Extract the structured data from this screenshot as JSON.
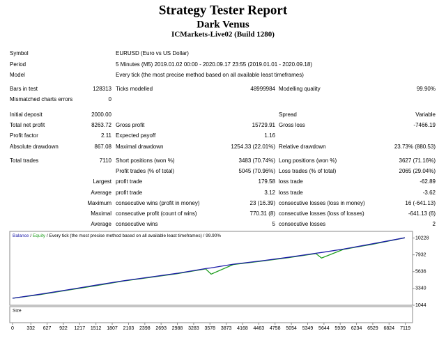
{
  "header": {
    "title": "Strategy Tester Report",
    "subtitle": "Dark Venus",
    "server": "ICMarkets-Live02 (Build 1280)"
  },
  "info": [
    {
      "label": "Symbol",
      "value": "EURUSD (Euro vs US Dollar)"
    },
    {
      "label": "Period",
      "value": "5 Minutes (M5) 2019.01.02 00:00 - 2020.09.17 23:55 (2019.01.01 - 2020.09.18)"
    },
    {
      "label": "Model",
      "value": "Every tick (the most precise method based on all available least timeframes)"
    }
  ],
  "stats": [
    {
      "left": {
        "label": "Bars in test",
        "value": "128313"
      },
      "middle": {
        "label": "Ticks modelled",
        "value": "48999984"
      },
      "right": {
        "label": "Modelling quality",
        "value": "99.90%"
      }
    },
    {
      "left": {
        "label": "Mismatched charts errors",
        "value": "0"
      }
    },
    {
      "left": {
        "label": "Initial deposit",
        "value": "2000.00"
      },
      "right": {
        "label": "Spread",
        "value": "Variable"
      }
    },
    {
      "left": {
        "label": "Total net profit",
        "value": "8263.72"
      },
      "middle": {
        "label": "Gross profit",
        "value": "15729.91"
      },
      "right": {
        "label": "Gross loss",
        "value": "-7466.19"
      }
    },
    {
      "left": {
        "label": "Profit factor",
        "value": "2.11"
      },
      "middle": {
        "label": "Expected payoff",
        "value": "1.16"
      }
    },
    {
      "left": {
        "label": "Absolute drawdown",
        "value": "867.08"
      },
      "middle": {
        "label": "Maximal drawdown",
        "value": "1254.33 (22.01%)"
      },
      "right": {
        "label": "Relative drawdown",
        "value": "23.73% (880.53)"
      }
    },
    {
      "left": {
        "label": "Total trades",
        "value": "7110"
      },
      "middle": {
        "label": "Short positions (won %)",
        "value": "3483 (70.74%)"
      },
      "right": {
        "label": "Long positions (won %)",
        "value": "3627 (71.16%)"
      }
    },
    {
      "middle": {
        "label": "Profit trades (% of total)",
        "value": "5045 (70.96%)"
      },
      "right": {
        "label": "Loss trades (% of total)",
        "value": "2065 (29.04%)"
      }
    },
    {
      "left": {
        "label": "Largest"
      },
      "middle": {
        "label": "profit trade",
        "value": "179.58"
      },
      "right": {
        "label": "loss trade",
        "value": "-62.89"
      }
    },
    {
      "left": {
        "label": "Average"
      },
      "middle": {
        "label": "profit trade",
        "value": "3.12"
      },
      "right": {
        "label": "loss trade",
        "value": "-3.62"
      }
    },
    {
      "left": {
        "label": "Maximum"
      },
      "middle": {
        "label": "consecutive wins (profit in money)",
        "value": "23 (16.39)"
      },
      "right": {
        "label": "consecutive losses (loss in money)",
        "value": "16 (-641.13)"
      }
    },
    {
      "left": {
        "label": "Maximal"
      },
      "middle": {
        "label": "consecutive profit (count of wins)",
        "value": "770.31 (8)"
      },
      "right": {
        "label": "consecutive losses (loss of losses)",
        "value": "-641.13 (6)"
      }
    },
    {
      "left": {
        "label": "Average"
      },
      "middle": {
        "label": "consecutive wins",
        "value": "5"
      },
      "right": {
        "label": "consecutive losses",
        "value": "2"
      }
    }
  ],
  "chart": {
    "type": "line",
    "separator": "/",
    "note": "/ Every tick (the most precise method based on all available least timeframes) / 99.90%",
    "size_label": "Size",
    "x": [
      0,
      500,
      1000,
      1500,
      2000,
      2500,
      3000,
      3500,
      3600,
      4000,
      4500,
      5000,
      5500,
      5600,
      6000,
      6500,
      7110
    ],
    "series": [
      {
        "name": "Balance",
        "color": "#1c1ca8",
        "values": [
          2000,
          2550,
          3150,
          3780,
          4380,
          4900,
          5420,
          6050,
          6150,
          6650,
          7100,
          7590,
          8150,
          8250,
          8720,
          9400,
          10264
        ]
      },
      {
        "name": "Equity",
        "color": "#1e9e1e",
        "values": [
          2000,
          2500,
          3100,
          3700,
          4350,
          4850,
          5380,
          6000,
          5300,
          6600,
          7050,
          7550,
          8100,
          7500,
          8680,
          9350,
          10264
        ]
      }
    ],
    "xlim": [
      -50,
      7250
    ],
    "ylim": [
      1044,
      11040
    ],
    "xticks": [
      0,
      332,
      627,
      922,
      1217,
      1512,
      1807,
      2103,
      2398,
      2693,
      2988,
      3283,
      3578,
      3873,
      4168,
      4463,
      4758,
      5054,
      5349,
      5644,
      5939,
      6234,
      6529,
      6824,
      7119
    ],
    "yticks": [
      10228,
      7932,
      5636,
      3340,
      1044
    ]
  }
}
